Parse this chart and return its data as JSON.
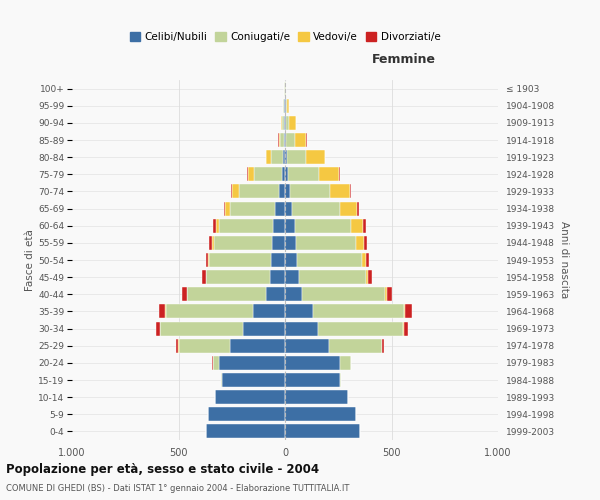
{
  "age_groups": [
    "0-4",
    "5-9",
    "10-14",
    "15-19",
    "20-24",
    "25-29",
    "30-34",
    "35-39",
    "40-44",
    "45-49",
    "50-54",
    "55-59",
    "60-64",
    "65-69",
    "70-74",
    "75-79",
    "80-84",
    "85-89",
    "90-94",
    "95-99",
    "100+"
  ],
  "birth_years": [
    "1999-2003",
    "1994-1998",
    "1989-1993",
    "1984-1988",
    "1979-1983",
    "1974-1978",
    "1969-1973",
    "1964-1968",
    "1959-1963",
    "1954-1958",
    "1949-1953",
    "1944-1948",
    "1939-1943",
    "1934-1938",
    "1929-1933",
    "1924-1928",
    "1919-1923",
    "1914-1918",
    "1909-1913",
    "1904-1908",
    "≤ 1903"
  ],
  "males": {
    "celibi": [
      370,
      360,
      330,
      295,
      310,
      260,
      195,
      150,
      90,
      70,
      65,
      60,
      55,
      45,
      30,
      15,
      8,
      5,
      5,
      3,
      2
    ],
    "coniugati": [
      0,
      0,
      0,
      5,
      30,
      240,
      390,
      410,
      370,
      300,
      290,
      275,
      255,
      215,
      185,
      130,
      60,
      20,
      10,
      5,
      2
    ],
    "vedovi": [
      0,
      0,
      0,
      0,
      0,
      2,
      2,
      2,
      2,
      3,
      5,
      8,
      15,
      20,
      35,
      30,
      20,
      5,
      2,
      0,
      0
    ],
    "divorziati": [
      0,
      0,
      0,
      0,
      2,
      10,
      20,
      28,
      20,
      15,
      12,
      12,
      12,
      8,
      5,
      5,
      2,
      2,
      0,
      0,
      0
    ]
  },
  "females": {
    "nubili": [
      350,
      335,
      295,
      260,
      260,
      205,
      155,
      130,
      80,
      65,
      55,
      50,
      45,
      35,
      25,
      15,
      8,
      5,
      5,
      3,
      2
    ],
    "coniugate": [
      0,
      0,
      0,
      5,
      50,
      250,
      400,
      430,
      390,
      315,
      305,
      285,
      265,
      225,
      185,
      145,
      90,
      40,
      15,
      8,
      2
    ],
    "vedove": [
      0,
      0,
      0,
      0,
      0,
      2,
      3,
      5,
      8,
      12,
      20,
      35,
      55,
      80,
      95,
      95,
      90,
      55,
      30,
      8,
      2
    ],
    "divorziate": [
      0,
      0,
      0,
      0,
      2,
      10,
      20,
      30,
      25,
      18,
      15,
      15,
      15,
      8,
      5,
      5,
      2,
      2,
      0,
      0,
      0
    ]
  },
  "colors": {
    "celibi": "#3d6fa5",
    "coniugati": "#c2d49a",
    "vedovi": "#f5c842",
    "divorziati": "#cc2222"
  },
  "xlim": 1000,
  "title": "Popolazione per età, sesso e stato civile - 2004",
  "subtitle": "COMUNE DI GHEDI (BS) - Dati ISTAT 1° gennaio 2004 - Elaborazione TUTTITALIA.IT",
  "ylabel_left": "Fasce di età",
  "ylabel_right": "Anni di nascita",
  "xlabel_right": "Femmine",
  "legend_labels": [
    "Celibi/Nubili",
    "Coniugati/e",
    "Vedovi/e",
    "Divorziati/e"
  ],
  "bg_color": "#f9f9f9",
  "grid_color": "#dddddd",
  "bar_edge_color": "#ffffff"
}
